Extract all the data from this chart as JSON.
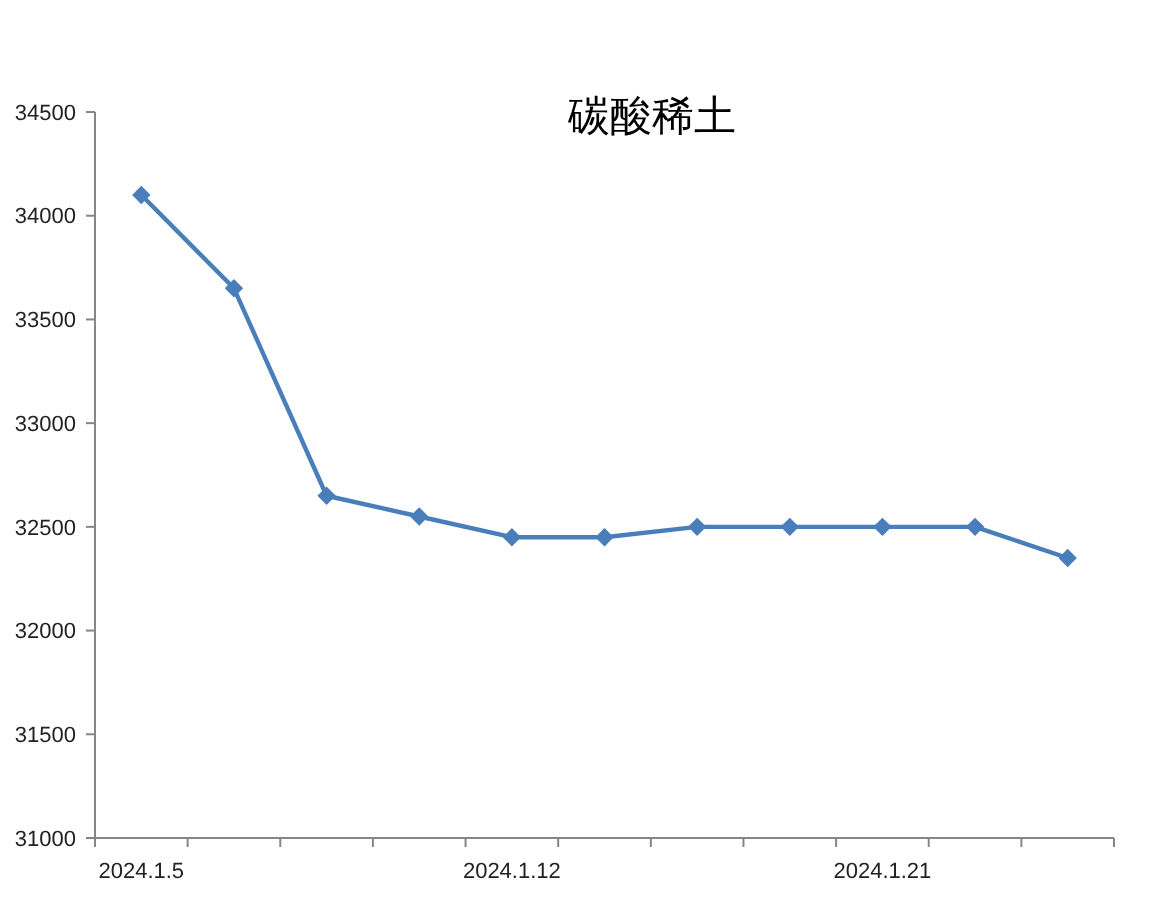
{
  "chart_data": {
    "type": "line",
    "title": "碳酸稀土",
    "categories": [
      "2024.1.5",
      null,
      null,
      null,
      "2024.1.12",
      null,
      null,
      null,
      "2024.1.21",
      null,
      null
    ],
    "series": [
      {
        "color": "#4a7ebb",
        "values": [
          34100,
          33650,
          32650,
          32550,
          32450,
          32450,
          32500,
          32500,
          32500,
          32500,
          32350
        ]
      }
    ],
    "ylim": [
      31000,
      34500
    ],
    "yticks": [
      31000,
      31500,
      32000,
      32500,
      33000,
      33500,
      34000,
      34500
    ],
    "grid": false,
    "marker": "diamond",
    "line_style": "solid"
  }
}
